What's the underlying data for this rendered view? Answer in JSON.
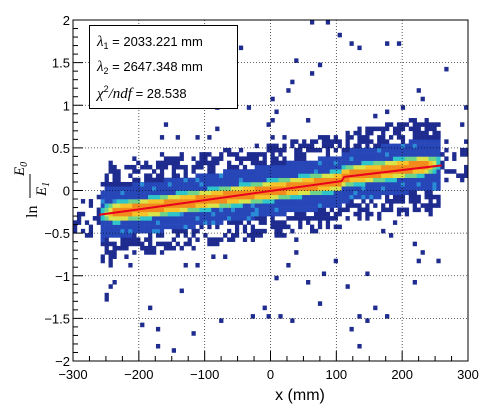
{
  "chart_data": {
    "type": "heatmap",
    "xlabel": "x (mm)",
    "ylabel": {
      "prefix": "ln",
      "numerator": "E",
      "numerator_sub": "0",
      "denominator": "E",
      "denominator_sub": "1"
    },
    "xlim": [
      -300,
      300
    ],
    "ylim": [
      -2,
      2
    ],
    "x_ticks": [
      -300,
      -200,
      -100,
      0,
      100,
      200,
      300
    ],
    "y_ticks": [
      -2,
      -1.5,
      -1,
      -0.5,
      0,
      0.5,
      1,
      1.5,
      2
    ],
    "x_tick_labels": [
      "−300",
      "−200",
      "−100",
      "0",
      "100",
      "200",
      "300"
    ],
    "y_tick_labels": [
      "−2",
      "−1.5",
      "−1",
      "−0.5",
      "0",
      "0.5",
      "1",
      "1.5",
      "2"
    ],
    "grid": true,
    "colormap": [
      "#1e2b8f",
      "#2746b8",
      "#2a8cd6",
      "#2fc4c9",
      "#6fd38a",
      "#d9e34a",
      "#f5c22a",
      "#f28a1c"
    ],
    "density_band": {
      "x_range": [
        -260,
        260
      ],
      "center_slope": 0.00108,
      "center_intercept": 0.0,
      "jump_at_x": 110,
      "jump_size": 0.045,
      "width": 0.3
    },
    "fit": {
      "color": "#e8001c",
      "segments": [
        {
          "x": [
            -260,
            108
          ],
          "y": [
            -0.285,
            0.11
          ]
        },
        {
          "x": [
            112,
            260
          ],
          "y": [
            0.16,
            0.295
          ]
        }
      ]
    },
    "stats": {
      "lambda1_symbol": "λ",
      "lambda1_sub": "1",
      "lambda1_value": "= 2033.221 mm",
      "lambda2_symbol": "λ",
      "lambda2_sub": "2",
      "lambda2_value": "= 2647.348 mm",
      "chi_symbol": "χ",
      "chi_sup": "2",
      "chi_over": "/ndf",
      "chi_value": "= 28.538"
    }
  }
}
